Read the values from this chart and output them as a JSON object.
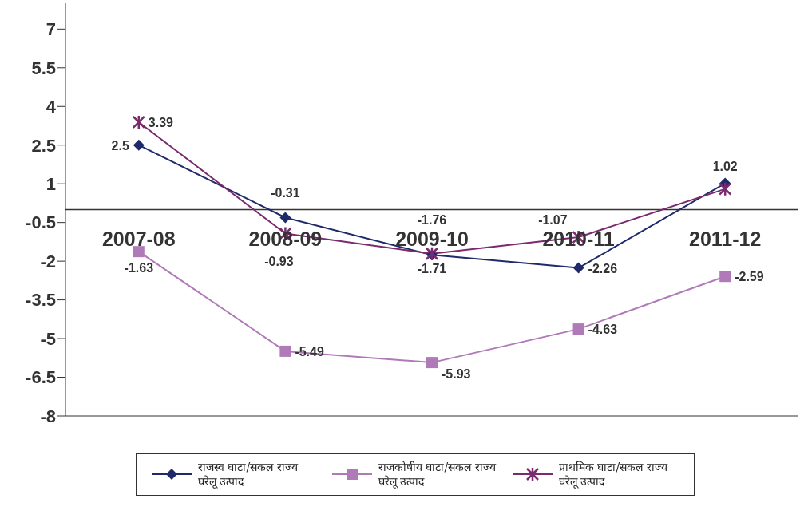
{
  "chart_data": {
    "type": "line",
    "categories": [
      "2007-08",
      "2008-09",
      "2009-10",
      "2010-11",
      "2011-12"
    ],
    "series": [
      {
        "name": "राजस्व घाटा/सकल राज्य घरेलू उत्पाद",
        "color": "#1f2a6b",
        "marker": "diamond",
        "values": [
          2.5,
          -0.31,
          -1.76,
          -2.26,
          1.02
        ],
        "value_labels": [
          "2.5",
          "-0.31",
          "-1.76",
          "-2.26",
          "1.02"
        ]
      },
      {
        "name": "राजकोषीय घाटा/सकल राज्य घरेलू उत्पाद",
        "color": "#b07ab8",
        "marker": "square",
        "values": [
          -1.63,
          -5.49,
          -5.93,
          -4.63,
          -2.59
        ],
        "value_labels": [
          "-1.63",
          "-5.49",
          "-5.93",
          "-4.63",
          "-2.59"
        ]
      },
      {
        "name": "प्राथमिक घाटा/सकल राज्य घरेलू उत्पाद",
        "color": "#7a2a6e",
        "marker": "cross",
        "values": [
          3.39,
          -0.93,
          -1.71,
          -1.07,
          0.8
        ],
        "value_labels": [
          "3.39",
          "-0.93",
          "-1.71",
          "-1.07",
          null
        ]
      }
    ],
    "ylim": [
      -8,
      8
    ],
    "yticks": [
      -8,
      -6.5,
      -5,
      -3.5,
      -2,
      -0.5,
      1,
      2.5,
      4,
      5.5,
      7
    ],
    "grid": false,
    "legend": "bottom"
  }
}
